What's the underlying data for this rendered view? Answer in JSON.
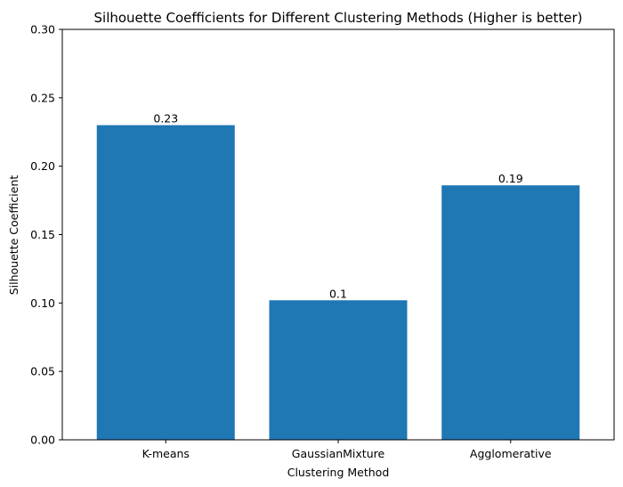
{
  "chart_data": {
    "type": "bar",
    "title": "Silhouette Coefficients for Different Clustering Methods (Higher is better)",
    "xlabel": "Clustering Method",
    "ylabel": "Silhouette Coefficient",
    "categories": [
      "K-means",
      "GaussianMixture",
      "Agglomerative"
    ],
    "values": [
      0.23,
      0.102,
      0.186
    ],
    "data_labels": [
      "0.23",
      "0.1",
      "0.19"
    ],
    "ylim": [
      0,
      0.3
    ],
    "yticks": [
      {
        "value": 0.0,
        "label": "0.00"
      },
      {
        "value": 0.05,
        "label": "0.05"
      },
      {
        "value": 0.1,
        "label": "0.10"
      },
      {
        "value": 0.15,
        "label": "0.15"
      },
      {
        "value": 0.2,
        "label": "0.20"
      },
      {
        "value": 0.25,
        "label": "0.25"
      },
      {
        "value": 0.3,
        "label": "0.30"
      }
    ],
    "bar_color": "#1f77b4",
    "grid": false,
    "legend": false
  }
}
